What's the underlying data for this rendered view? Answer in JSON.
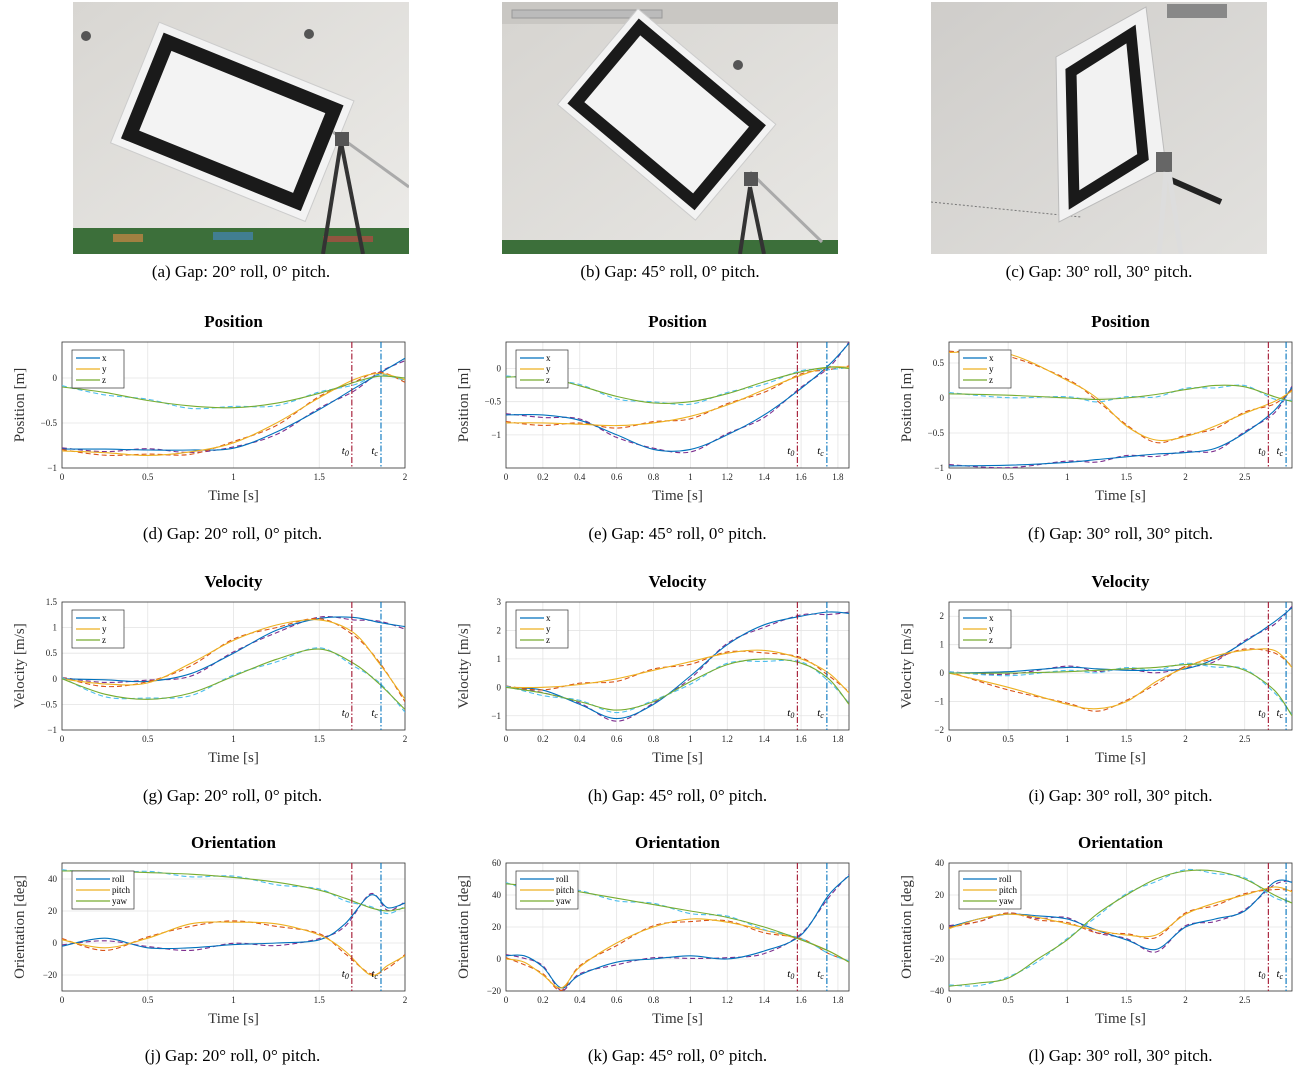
{
  "captions": {
    "a": "(a) Gap: 20° roll, 0° pitch.",
    "b": "(b) Gap: 45° roll, 0° pitch.",
    "c": "(c) Gap: 30° roll, 30° pitch.",
    "d": "(d) Gap: 20° roll, 0° pitch.",
    "e": "(e) Gap: 45° roll, 0° pitch.",
    "f": "(f) Gap: 30° roll, 30° pitch.",
    "g": "(g) Gap: 20° roll, 0° pitch.",
    "h": "(h) Gap: 45° roll, 0° pitch.",
    "i": "(i) Gap: 30° roll, 30° pitch.",
    "j": "(j) Gap: 20° roll, 0° pitch.",
    "k": "(k) Gap: 45° roll, 0° pitch.",
    "l": "(l) Gap: 30° roll, 30° pitch."
  },
  "colors": {
    "blue": "#0072bd",
    "orange": "#edb120",
    "green": "#77ac30",
    "dash_blue": "#7e2f8e",
    "dash_orange": "#d95319",
    "dash_green": "#4dbeee",
    "t0": "#a2142f",
    "tc": "#0072bd"
  },
  "chart_data": [
    {
      "id": "d",
      "type": "line",
      "title": "Position",
      "xlabel": "Time [s]",
      "ylabel": "Position [m]",
      "xlim": [
        0,
        2
      ],
      "ylim": [
        -1,
        0.4
      ],
      "xticks": [
        0,
        0.5,
        1,
        1.5,
        2
      ],
      "xticklabels": [
        "0",
        "0.5",
        "1",
        "1.5",
        "2"
      ],
      "yticks": [
        -1,
        -0.5,
        0
      ],
      "yticklabels": [
        "−1",
        "−0.5",
        "0"
      ],
      "t0": 1.69,
      "tc": 1.86,
      "t0_label": "t0",
      "tc_label": "tc",
      "legend": [
        "x",
        "y",
        "z"
      ],
      "legend_pos": "top-left",
      "x": [
        0,
        0.25,
        0.5,
        0.75,
        1,
        1.25,
        1.5,
        1.7,
        1.85,
        2
      ],
      "series": [
        {
          "name": "x",
          "values": [
            -0.79,
            -0.79,
            -0.8,
            -0.8,
            -0.78,
            -0.6,
            -0.35,
            -0.12,
            0.05,
            0.22
          ]
        },
        {
          "name": "y",
          "values": [
            -0.81,
            -0.83,
            -0.86,
            -0.82,
            -0.72,
            -0.5,
            -0.22,
            -0.02,
            0.05,
            -0.02
          ]
        },
        {
          "name": "z",
          "values": [
            -0.1,
            -0.16,
            -0.25,
            -0.31,
            -0.33,
            -0.28,
            -0.17,
            -0.05,
            0.02,
            0
          ]
        }
      ]
    },
    {
      "id": "e",
      "type": "line",
      "title": "Position",
      "xlabel": "Time [s]",
      "ylabel": "Position [m]",
      "xlim": [
        0,
        1.86
      ],
      "ylim": [
        -1.5,
        0.4
      ],
      "xticks": [
        0,
        0.2,
        0.4,
        0.6,
        0.8,
        1,
        1.2,
        1.4,
        1.6,
        1.8
      ],
      "xticklabels": [
        "0",
        "0.2",
        "0.4",
        "0.6",
        "0.8",
        "1",
        "1.2",
        "1.4",
        "1.6",
        "1.8"
      ],
      "yticks": [
        -1,
        -0.5,
        0
      ],
      "yticklabels": [
        "−1",
        "−0.5",
        "0"
      ],
      "t0": 1.58,
      "tc": 1.74,
      "t0_label": "t0",
      "tc_label": "tc",
      "legend": [
        "x",
        "y",
        "z"
      ],
      "legend_pos": "top-left",
      "x": [
        0,
        0.2,
        0.4,
        0.6,
        0.8,
        1,
        1.2,
        1.4,
        1.6,
        1.75,
        1.86
      ],
      "series": [
        {
          "name": "x",
          "values": [
            -0.7,
            -0.7,
            -0.78,
            -1,
            -1.22,
            -1.22,
            -1.0,
            -0.7,
            -0.3,
            0.05,
            0.38
          ]
        },
        {
          "name": "y",
          "values": [
            -0.82,
            -0.82,
            -0.84,
            -0.86,
            -0.82,
            -0.72,
            -0.55,
            -0.32,
            -0.1,
            0.02,
            0.02
          ]
        },
        {
          "name": "z",
          "values": [
            -0.13,
            -0.13,
            -0.26,
            -0.42,
            -0.52,
            -0.5,
            -0.38,
            -0.2,
            -0.05,
            0.02,
            0
          ]
        }
      ]
    },
    {
      "id": "f",
      "type": "line",
      "title": "Position",
      "xlabel": "Time [s]",
      "ylabel": "Position [m]",
      "xlim": [
        0,
        2.9
      ],
      "ylim": [
        -1,
        0.8
      ],
      "xticks": [
        0,
        0.5,
        1,
        1.5,
        2,
        2.5
      ],
      "xticklabels": [
        "0",
        "0.5",
        "1",
        "1.5",
        "2",
        "2.5"
      ],
      "yticks": [
        -1,
        -0.5,
        0,
        0.5
      ],
      "yticklabels": [
        "−1",
        "−0.5",
        "0",
        "0.5"
      ],
      "t0": 2.7,
      "tc": 2.85,
      "t0_label": "t0",
      "tc_label": "tc",
      "legend": [
        "x",
        "y",
        "z"
      ],
      "legend_pos": "top-left",
      "x": [
        0,
        0.5,
        1,
        1.25,
        1.5,
        1.75,
        2,
        2.25,
        2.5,
        2.75,
        2.9
      ],
      "series": [
        {
          "name": "x",
          "values": [
            -0.97,
            -0.96,
            -0.92,
            -0.88,
            -0.84,
            -0.8,
            -0.78,
            -0.72,
            -0.5,
            -0.18,
            0.15
          ]
        },
        {
          "name": "y",
          "values": [
            0.65,
            0.63,
            0.25,
            0.0,
            -0.4,
            -0.6,
            -0.55,
            -0.4,
            -0.22,
            -0.05,
            0.1
          ]
        },
        {
          "name": "z",
          "values": [
            0.06,
            0.04,
            0.0,
            -0.02,
            0.0,
            0.05,
            0.12,
            0.18,
            0.16,
            0.02,
            -0.05
          ]
        }
      ]
    },
    {
      "id": "g",
      "type": "line",
      "title": "Velocity",
      "xlabel": "Time [s]",
      "ylabel": "Velocity [m/s]",
      "xlim": [
        0,
        2
      ],
      "ylim": [
        -1,
        1.5
      ],
      "xticks": [
        0,
        0.5,
        1,
        1.5,
        2
      ],
      "xticklabels": [
        "0",
        "0.5",
        "1",
        "1.5",
        "2"
      ],
      "yticks": [
        -1,
        -0.5,
        0,
        0.5,
        1,
        1.5
      ],
      "yticklabels": [
        "−1",
        "−0.5",
        "0",
        "0.5",
        "1",
        "1.5"
      ],
      "t0": 1.69,
      "tc": 1.86,
      "t0_label": "t0",
      "tc_label": "tc",
      "legend": [
        "x",
        "y",
        "z"
      ],
      "legend_pos": "top-left",
      "x": [
        0,
        0.25,
        0.5,
        0.75,
        1,
        1.25,
        1.5,
        1.7,
        1.85,
        2
      ],
      "series": [
        {
          "name": "x",
          "values": [
            0,
            -0.02,
            -0.05,
            0.1,
            0.5,
            0.95,
            1.18,
            1.2,
            1.1,
            1.02
          ]
        },
        {
          "name": "y",
          "values": [
            0,
            -0.1,
            -0.08,
            0.3,
            0.75,
            1.05,
            1.15,
            0.9,
            0.3,
            -0.4
          ]
        },
        {
          "name": "z",
          "values": [
            0,
            -0.3,
            -0.4,
            -0.28,
            0.05,
            0.38,
            0.58,
            0.3,
            -0.1,
            -0.6
          ]
        }
      ]
    },
    {
      "id": "h",
      "type": "line",
      "title": "Velocity",
      "xlabel": "Time [s]",
      "ylabel": "Velocity [m/s]",
      "xlim": [
        0,
        1.86
      ],
      "ylim": [
        -1.5,
        3
      ],
      "xticks": [
        0,
        0.2,
        0.4,
        0.6,
        0.8,
        1,
        1.2,
        1.4,
        1.6,
        1.8
      ],
      "xticklabels": [
        "0",
        "0.2",
        "0.4",
        "0.6",
        "0.8",
        "1",
        "1.2",
        "1.4",
        "1.6",
        "1.8"
      ],
      "yticks": [
        -1,
        0,
        1,
        2,
        3
      ],
      "yticklabels": [
        "−1",
        "0",
        "1",
        "2",
        "3"
      ],
      "t0": 1.58,
      "tc": 1.74,
      "t0_label": "t0",
      "tc_label": "tc",
      "legend": [
        "x",
        "y",
        "z"
      ],
      "legend_pos": "top-left",
      "x": [
        0,
        0.2,
        0.4,
        0.6,
        0.8,
        1,
        1.2,
        1.4,
        1.6,
        1.75,
        1.86
      ],
      "series": [
        {
          "name": "x",
          "values": [
            0,
            -0.1,
            -0.6,
            -1.1,
            -0.6,
            0.4,
            1.5,
            2.2,
            2.5,
            2.65,
            2.6
          ]
        },
        {
          "name": "y",
          "values": [
            0,
            0.0,
            0.1,
            0.3,
            0.6,
            0.9,
            1.2,
            1.3,
            1.0,
            0.5,
            -0.2
          ]
        },
        {
          "name": "z",
          "values": [
            0,
            -0.2,
            -0.5,
            -0.8,
            -0.5,
            0.2,
            0.8,
            1.0,
            0.85,
            0.3,
            -0.6
          ]
        }
      ]
    },
    {
      "id": "i",
      "type": "line",
      "title": "Velocity",
      "xlabel": "Time [s]",
      "ylabel": "Velocity [m/s]",
      "xlim": [
        0,
        2.9
      ],
      "ylim": [
        -2,
        2.5
      ],
      "xticks": [
        0,
        0.5,
        1,
        1.5,
        2,
        2.5
      ],
      "xticklabels": [
        "0",
        "0.5",
        "1",
        "1.5",
        "2",
        "2.5"
      ],
      "yticks": [
        -2,
        -1,
        0,
        1,
        2
      ],
      "yticklabels": [
        "−2",
        "−1",
        "0",
        "1",
        "2"
      ],
      "t0": 2.7,
      "tc": 2.85,
      "t0_label": "t0",
      "tc_label": "tc",
      "legend": [
        "x",
        "y",
        "z"
      ],
      "legend_pos": "top-left",
      "x": [
        0,
        0.5,
        1,
        1.25,
        1.5,
        1.75,
        2,
        2.25,
        2.5,
        2.75,
        2.9
      ],
      "series": [
        {
          "name": "x",
          "values": [
            0,
            0.05,
            0.2,
            0.15,
            0.1,
            0.1,
            0.15,
            0.5,
            1.1,
            1.8,
            2.3
          ]
        },
        {
          "name": "y",
          "values": [
            0,
            -0.5,
            -1.1,
            -1.25,
            -1.0,
            -0.3,
            0.2,
            0.6,
            0.8,
            0.8,
            0.2
          ]
        },
        {
          "name": "z",
          "values": [
            0,
            0.0,
            0.05,
            0.1,
            0.15,
            0.2,
            0.3,
            0.3,
            0.1,
            -0.6,
            -1.5
          ]
        }
      ]
    },
    {
      "id": "j",
      "type": "line",
      "title": "Orientation",
      "xlabel": "Time [s]",
      "ylabel": "Orientation [deg]",
      "xlim": [
        0,
        2
      ],
      "ylim": [
        -30,
        50
      ],
      "xticks": [
        0,
        0.5,
        1,
        1.5,
        2
      ],
      "xticklabels": [
        "0",
        "0.5",
        "1",
        "1.5",
        "2"
      ],
      "yticks": [
        -20,
        0,
        20,
        40
      ],
      "yticklabels": [
        "−20",
        "0",
        "20",
        "40"
      ],
      "t0": 1.69,
      "tc": 1.86,
      "t0_label": "t0",
      "tc_label": "tc",
      "legend": [
        "roll",
        "pitch",
        "yaw"
      ],
      "legend_pos": "top-left",
      "x": [
        0,
        0.25,
        0.5,
        0.75,
        1,
        1.25,
        1.5,
        1.65,
        1.8,
        1.9,
        2
      ],
      "series": [
        {
          "name": "roll",
          "values": [
            -2,
            3,
            -3,
            -3,
            -1,
            0,
            2,
            12,
            30,
            22,
            25
          ]
        },
        {
          "name": "pitch",
          "values": [
            2,
            -3,
            3,
            12,
            13,
            12,
            5,
            -5,
            -20,
            -14,
            -8
          ]
        },
        {
          "name": "yaw",
          "values": [
            45,
            45,
            44,
            43,
            41,
            38,
            33,
            28,
            22,
            20,
            22
          ]
        }
      ]
    },
    {
      "id": "k",
      "type": "line",
      "title": "Orientation",
      "xlabel": "Time [s]",
      "ylabel": "Orientation [deg]",
      "xlim": [
        0,
        1.86
      ],
      "ylim": [
        -20,
        60
      ],
      "xticks": [
        0,
        0.2,
        0.4,
        0.6,
        0.8,
        1,
        1.2,
        1.4,
        1.6,
        1.8
      ],
      "xticklabels": [
        "0",
        "0.2",
        "0.4",
        "0.6",
        "0.8",
        "1",
        "1.2",
        "1.4",
        "1.6",
        "1.8"
      ],
      "yticks": [
        -20,
        0,
        20,
        40,
        60
      ],
      "yticklabels": [
        "−20",
        "0",
        "20",
        "40",
        "60"
      ],
      "t0": 1.58,
      "tc": 1.74,
      "t0_label": "t0",
      "tc_label": "tc",
      "legend": [
        "roll",
        "pitch",
        "yaw"
      ],
      "legend_pos": "top-left",
      "x": [
        0,
        0.1,
        0.2,
        0.3,
        0.4,
        0.6,
        0.8,
        1,
        1.2,
        1.4,
        1.6,
        1.75,
        1.86
      ],
      "series": [
        {
          "name": "roll",
          "values": [
            2,
            2,
            -5,
            -18,
            -10,
            -2,
            0,
            2,
            0,
            5,
            15,
            40,
            52
          ]
        },
        {
          "name": "pitch",
          "values": [
            0,
            -2,
            -10,
            -18,
            -5,
            10,
            20,
            25,
            23,
            18,
            12,
            5,
            -2
          ]
        },
        {
          "name": "yaw",
          "values": [
            47,
            46,
            45,
            44,
            42,
            38,
            34,
            30,
            26,
            20,
            12,
            5,
            -2
          ]
        }
      ]
    },
    {
      "id": "l",
      "type": "line",
      "title": "Orientation",
      "xlabel": "Time [s]",
      "ylabel": "Orientation [deg]",
      "xlim": [
        0,
        2.9
      ],
      "ylim": [
        -40,
        40
      ],
      "xticks": [
        0,
        0.5,
        1,
        1.5,
        2,
        2.5
      ],
      "xticklabels": [
        "0",
        "0.5",
        "1",
        "1.5",
        "2",
        "2.5"
      ],
      "yticks": [
        -40,
        -20,
        0,
        20,
        40
      ],
      "yticklabels": [
        "−40",
        "−20",
        "0",
        "20",
        "40"
      ],
      "t0": 2.7,
      "tc": 2.85,
      "t0_label": "t0",
      "tc_label": "tc",
      "legend": [
        "roll",
        "pitch",
        "yaw"
      ],
      "legend_pos": "top-left",
      "x": [
        0,
        0.25,
        0.5,
        0.75,
        1,
        1.25,
        1.5,
        1.75,
        2,
        2.25,
        2.5,
        2.75,
        2.9
      ],
      "series": [
        {
          "name": "roll",
          "values": [
            0,
            5,
            8,
            7,
            5,
            -2,
            -8,
            -14,
            0,
            5,
            10,
            28,
            28
          ]
        },
        {
          "name": "pitch",
          "values": [
            -1,
            5,
            8,
            6,
            2,
            -2,
            -5,
            -5,
            8,
            15,
            20,
            25,
            22
          ]
        },
        {
          "name": "yaw",
          "values": [
            -37,
            -35,
            -32,
            -20,
            -8,
            8,
            20,
            30,
            35,
            35,
            30,
            20,
            15
          ]
        }
      ]
    }
  ]
}
